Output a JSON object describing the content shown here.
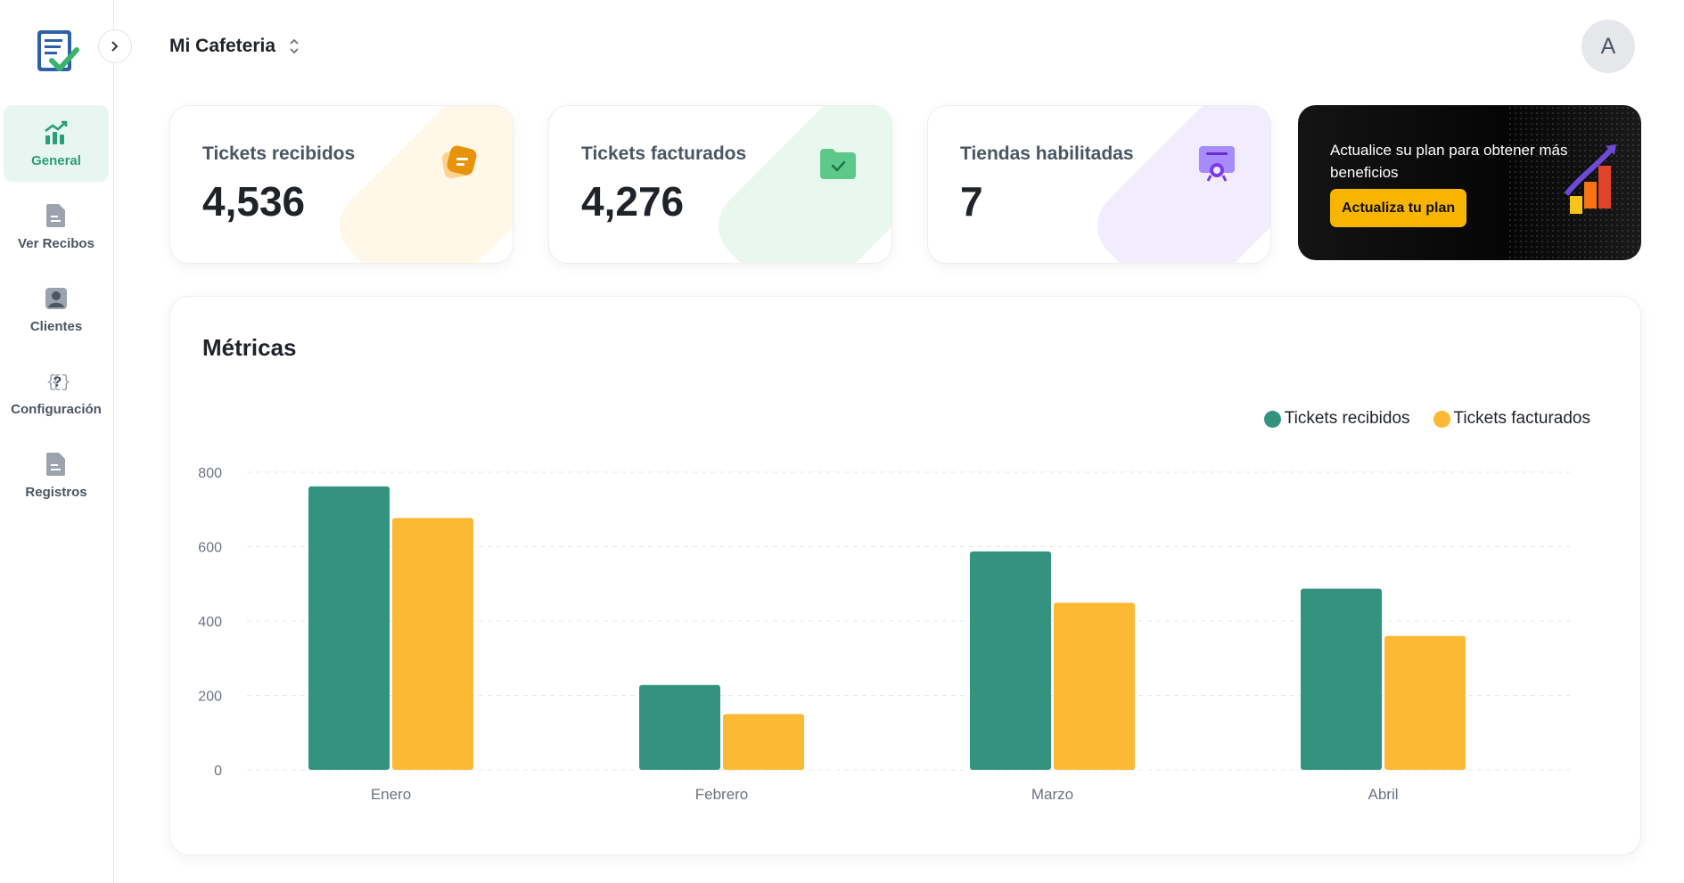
{
  "app": {
    "store_name": "Mi Cafeteria",
    "avatar_initial": "A"
  },
  "sidebar": {
    "items": [
      {
        "label": "General",
        "icon": "chart-up-icon",
        "active": true
      },
      {
        "label": "Ver Recibos",
        "icon": "document-icon",
        "active": false
      },
      {
        "label": "Clientes",
        "icon": "user-icon",
        "active": false
      },
      {
        "label": "Configuración",
        "icon": "braces-question-icon",
        "active": false
      },
      {
        "label": "Registros",
        "icon": "document-icon",
        "active": false
      }
    ]
  },
  "stats": [
    {
      "title": "Tickets recibidos",
      "value": "4,536",
      "icon": "ticket-icon",
      "accent": "#f5a623",
      "blob": "#fff7e8"
    },
    {
      "title": "Tickets facturados",
      "value": "4,276",
      "icon": "folder-check-icon",
      "accent": "#5cc98a",
      "blob": "#e9f8ef"
    },
    {
      "title": "Tiendas habilitadas",
      "value": "7",
      "icon": "certificate-icon",
      "accent": "#8b5cf6",
      "blob": "#f2ecff"
    }
  ],
  "promo": {
    "text": "Actualice su plan para obtener más beneficios",
    "button": "Actualiza tu plan"
  },
  "metrics": {
    "title": "Métricas"
  },
  "colors": {
    "primary": "#2a9d79",
    "series_received": "#34937f",
    "series_invoiced": "#fcb933"
  },
  "chart_data": {
    "type": "bar",
    "categories": [
      "Enero",
      "Febrero",
      "Marzo",
      "Abril"
    ],
    "series": [
      {
        "name": "Tickets recibidos",
        "values": [
          762,
          228,
          587,
          487
        ]
      },
      {
        "name": "Tickets facturados",
        "values": [
          677,
          150,
          449,
          360
        ]
      }
    ],
    "yticks": [
      0,
      200,
      400,
      600,
      800
    ],
    "ylim": [
      0,
      800
    ],
    "grid": true,
    "legend": "top-right"
  }
}
